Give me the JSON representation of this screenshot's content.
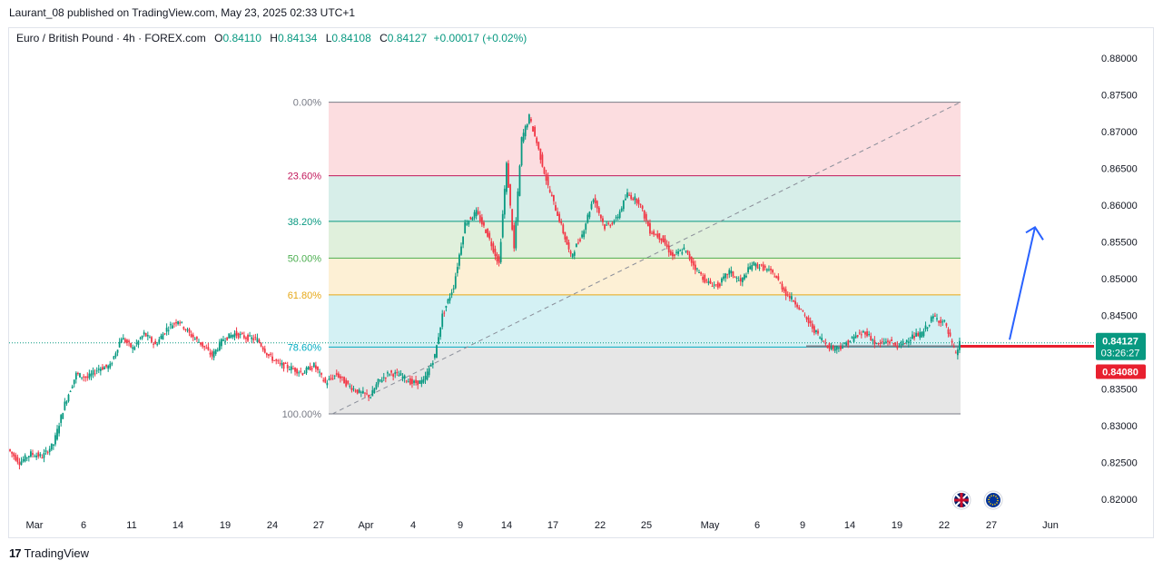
{
  "header": {
    "publisher_line": "Laurant_08 published on TradingView.com, May 23, 2025 02:33 UTC+1"
  },
  "legend": {
    "symbol": "Euro / British Pound · 4h · FOREX.com",
    "open_label": "O",
    "open": "0.84110",
    "high_label": "H",
    "high": "0.84134",
    "low_label": "L",
    "low": "0.84108",
    "close_label": "C",
    "close": "0.84127",
    "change": "+0.00017 (+0.02%)"
  },
  "footer": {
    "logo_text": "17",
    "brand": "TradingView"
  },
  "colors": {
    "up": "#089981",
    "down": "#f23645",
    "fib_0": "#fcdde0",
    "fib_236": "#d7eee9",
    "fib_382": "#e0f0dc",
    "fib_50": "#fdf0d5",
    "fib_618": "#d4f1f4",
    "fib_786": "#e6e6e6",
    "arrow": "#2962ff",
    "support_line": "#e8202f"
  },
  "chart_data": {
    "type": "candlestick",
    "symbol": "EURGBP",
    "timeframe": "4h",
    "y_axis": {
      "ticks": [
        "0.88000",
        "0.87500",
        "0.87000",
        "0.86500",
        "0.86000",
        "0.85500",
        "0.85000",
        "0.84500",
        "0.84000",
        "0.83500",
        "0.83000",
        "0.82500",
        "0.82000"
      ],
      "range": [
        0.8195,
        0.8812
      ]
    },
    "x_axis": {
      "ticks": [
        "Mar",
        "6",
        "11",
        "14",
        "19",
        "24",
        "27",
        "Apr",
        "4",
        "9",
        "14",
        "17",
        "22",
        "25",
        "May",
        "6",
        "9",
        "14",
        "19",
        "22",
        "27",
        "Jun"
      ]
    },
    "fib_levels": [
      {
        "label": "0.00%",
        "ratio": 0.0,
        "price": 0.874,
        "color": "#787b86"
      },
      {
        "label": "23.60%",
        "ratio": 0.236,
        "price": 0.864,
        "color": "#c2185b"
      },
      {
        "label": "38.20%",
        "ratio": 0.382,
        "price": 0.8578,
        "color": "#089981"
      },
      {
        "label": "50.00%",
        "ratio": 0.5,
        "price": 0.8528,
        "color": "#4caf50"
      },
      {
        "label": "61.80%",
        "ratio": 0.618,
        "price": 0.8478,
        "color": "#e6a817"
      },
      {
        "label": "78.60%",
        "ratio": 0.786,
        "price": 0.8407,
        "color": "#00acc1"
      },
      {
        "label": "100.00%",
        "ratio": 1.0,
        "price": 0.8316,
        "color": "#787b86"
      }
    ],
    "price_path": [
      [
        0,
        0.8268
      ],
      [
        6,
        0.825
      ],
      [
        12,
        0.8262
      ],
      [
        18,
        0.8258
      ],
      [
        24,
        0.8275
      ],
      [
        30,
        0.833
      ],
      [
        36,
        0.837
      ],
      [
        42,
        0.8365
      ],
      [
        48,
        0.8378
      ],
      [
        54,
        0.8381
      ],
      [
        60,
        0.842
      ],
      [
        66,
        0.8405
      ],
      [
        72,
        0.8425
      ],
      [
        78,
        0.841
      ],
      [
        84,
        0.8432
      ],
      [
        90,
        0.8444
      ],
      [
        96,
        0.8425
      ],
      [
        102,
        0.8412
      ],
      [
        108,
        0.8395
      ],
      [
        114,
        0.8418
      ],
      [
        120,
        0.8425
      ],
      [
        126,
        0.842
      ],
      [
        132,
        0.8417
      ],
      [
        138,
        0.8395
      ],
      [
        144,
        0.8383
      ],
      [
        150,
        0.8378
      ],
      [
        156,
        0.8372
      ],
      [
        162,
        0.8382
      ],
      [
        168,
        0.8358
      ],
      [
        174,
        0.837
      ],
      [
        180,
        0.8355
      ],
      [
        186,
        0.8345
      ],
      [
        192,
        0.834
      ],
      [
        196,
        0.836
      ],
      [
        202,
        0.8372
      ],
      [
        208,
        0.8368
      ],
      [
        214,
        0.8358
      ],
      [
        220,
        0.836
      ],
      [
        226,
        0.8395
      ],
      [
        230,
        0.845
      ],
      [
        236,
        0.849
      ],
      [
        242,
        0.8575
      ],
      [
        248,
        0.859
      ],
      [
        254,
        0.856
      ],
      [
        260,
        0.852
      ],
      [
        264,
        0.8655
      ],
      [
        268,
        0.854
      ],
      [
        272,
        0.869
      ],
      [
        276,
        0.872
      ],
      [
        280,
        0.8685
      ],
      [
        286,
        0.8625
      ],
      [
        292,
        0.858
      ],
      [
        298,
        0.853
      ],
      [
        304,
        0.856
      ],
      [
        310,
        0.861
      ],
      [
        316,
        0.857
      ],
      [
        322,
        0.858
      ],
      [
        328,
        0.8615
      ],
      [
        334,
        0.8605
      ],
      [
        340,
        0.8565
      ],
      [
        346,
        0.8555
      ],
      [
        352,
        0.853
      ],
      [
        358,
        0.854
      ],
      [
        364,
        0.8515
      ],
      [
        370,
        0.8495
      ],
      [
        376,
        0.849
      ],
      [
        382,
        0.851
      ],
      [
        388,
        0.8495
      ],
      [
        394,
        0.852
      ],
      [
        400,
        0.8515
      ],
      [
        406,
        0.8505
      ],
      [
        412,
        0.848
      ],
      [
        418,
        0.8465
      ],
      [
        424,
        0.844
      ],
      [
        430,
        0.842
      ],
      [
        436,
        0.8405
      ],
      [
        442,
        0.8408
      ],
      [
        448,
        0.842
      ],
      [
        454,
        0.8428
      ],
      [
        460,
        0.841
      ],
      [
        466,
        0.8415
      ],
      [
        472,
        0.8408
      ],
      [
        478,
        0.842
      ],
      [
        484,
        0.8425
      ],
      [
        490,
        0.8448
      ],
      [
        496,
        0.844
      ],
      [
        502,
        0.8396
      ],
      [
        504,
        0.84127
      ]
    ],
    "current_price": "0.84127",
    "countdown": "03:26:27",
    "support_price": "0.84080",
    "support_level": 0.8408,
    "forecast_arrow": {
      "from_price": 0.8412,
      "to_price": 0.857,
      "direction": "up"
    },
    "flag_icons": [
      "gb-flag-icon",
      "eu-flag-icon"
    ]
  }
}
